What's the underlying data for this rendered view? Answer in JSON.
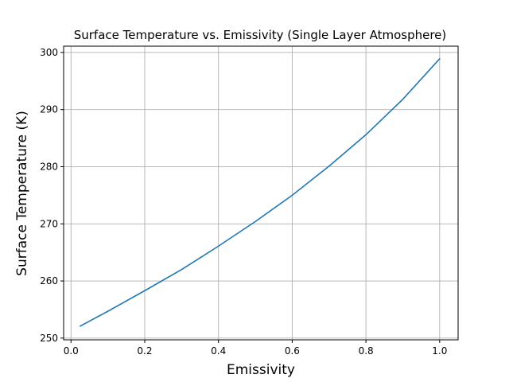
{
  "chart_data": {
    "type": "line",
    "title": "Surface Temperature vs. Emissivity (Single Layer Atmosphere)",
    "xlabel": "Emissivity",
    "ylabel": "Surface Temperature (K)",
    "xlim": [
      -0.02,
      1.05
    ],
    "ylim": [
      249.7,
      301.1
    ],
    "xticks": [
      0.0,
      0.2,
      0.4,
      0.6,
      0.8,
      1.0
    ],
    "xtick_labels": [
      "0.0",
      "0.2",
      "0.4",
      "0.6",
      "0.8",
      "1.0"
    ],
    "yticks": [
      250,
      260,
      270,
      280,
      290,
      300
    ],
    "ytick_labels": [
      "250",
      "260",
      "270",
      "280",
      "290",
      "300"
    ],
    "grid": true,
    "series": [
      {
        "color": "#1f77b4",
        "x": [
          0.025,
          0.1,
          0.2,
          0.3,
          0.4,
          0.5,
          0.6,
          0.7,
          0.8,
          0.9,
          1.0
        ],
        "y": [
          252.1,
          254.7,
          258.3,
          262.0,
          266.1,
          270.4,
          275.0,
          280.1,
          285.6,
          291.8,
          298.9
        ]
      }
    ]
  }
}
